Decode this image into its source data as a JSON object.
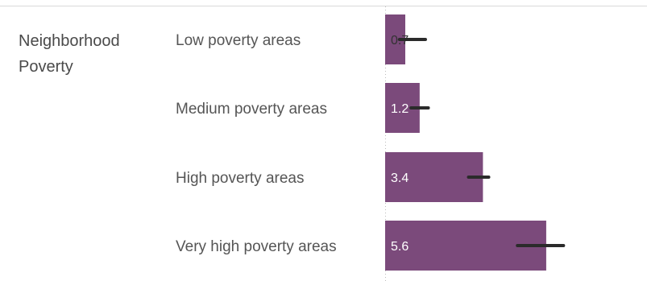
{
  "group": {
    "label_line1": "Neighborhood",
    "label_line2": "Poverty"
  },
  "colors": {
    "bar": "#7b4a7b",
    "error_bar": "#2b2b2b",
    "data_label_inside": "#ffffff",
    "data_label_small": "#333333",
    "rule": "#d9d9d9",
    "axis_dotted": "#bbbbbb"
  },
  "chart_data": {
    "type": "bar",
    "orientation": "horizontal",
    "title": "",
    "xlabel": "",
    "ylabel": "",
    "xlim": [
      0,
      8.5
    ],
    "grid": false,
    "categories": [
      "Low poverty areas",
      "Medium poverty areas",
      "High poverty areas",
      "Very high poverty areas"
    ],
    "values": [
      0.7,
      1.2,
      3.4,
      5.6
    ],
    "data_labels": [
      "0.7",
      "1.2",
      "3.4",
      "5.6"
    ],
    "error_low": [
      0.5,
      0.9,
      2.9,
      4.6
    ],
    "error_high": [
      1.4,
      1.5,
      3.6,
      6.2
    ]
  }
}
